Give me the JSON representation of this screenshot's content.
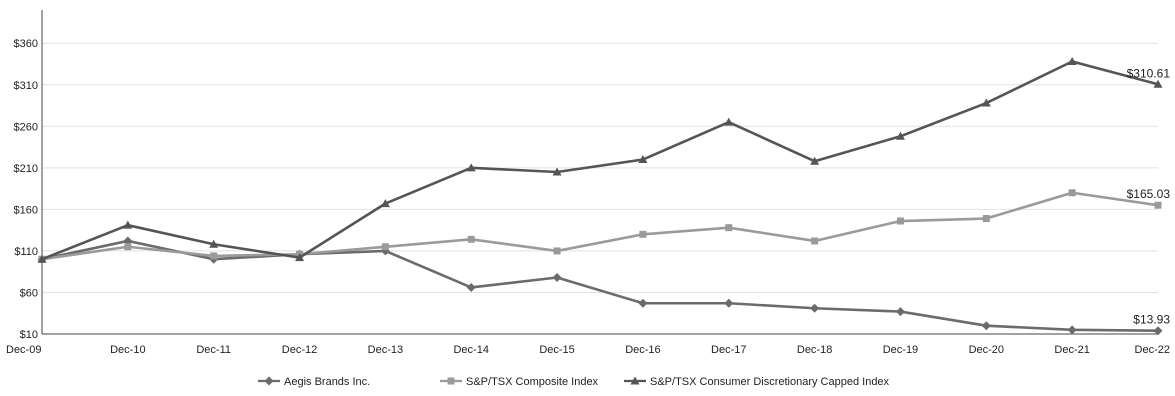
{
  "chart_data": {
    "type": "line",
    "categories": [
      "Dec-09",
      "Dec-10",
      "Dec-11",
      "Dec-12",
      "Dec-13",
      "Dec-14",
      "Dec-15",
      "Dec-16",
      "Dec-17",
      "Dec-18",
      "Dec-19",
      "Dec-20",
      "Dec-21",
      "Dec-22"
    ],
    "yticks": [
      "$10",
      "$60",
      "$110",
      "$160",
      "$210",
      "$260",
      "$310",
      "$360"
    ],
    "ylim": [
      10,
      400
    ],
    "grid": true,
    "legend_position": "bottom",
    "series": [
      {
        "name": "Aegis Brands Inc.",
        "values": [
          100,
          122,
          100,
          106,
          110,
          66,
          78,
          47,
          47,
          41,
          37,
          20,
          15,
          13.93
        ],
        "end_label": "$13.93",
        "color": "#6b6b6b",
        "marker": "diamond"
      },
      {
        "name": "S&P/TSX Composite Index",
        "values": [
          100,
          115,
          104,
          106,
          115,
          124,
          110,
          130,
          138,
          122,
          146,
          149,
          180,
          165.03
        ],
        "end_label": "$165.03",
        "color": "#9a9a9a",
        "marker": "square"
      },
      {
        "name": "S&P/TSX Consumer Discretionary Capped Index",
        "values": [
          100,
          141,
          118,
          102,
          167,
          210,
          205,
          220,
          265,
          218,
          248,
          288,
          338,
          310.61
        ],
        "end_label": "$310.61",
        "color": "#555555",
        "marker": "triangle"
      }
    ]
  }
}
